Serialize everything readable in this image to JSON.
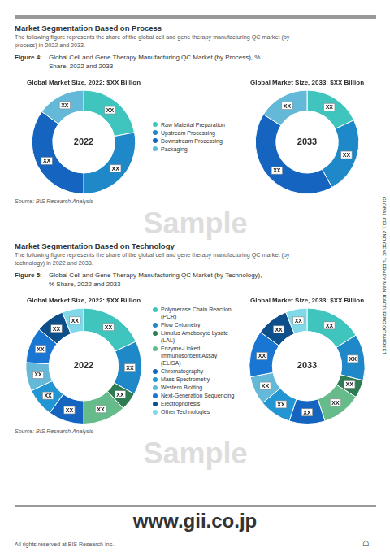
{
  "chart_data": [
    {
      "type": "doughnut",
      "title": "Global Market Size, 2022: $XX Billion",
      "categories": [
        "Raw Material Preparation",
        "Upstream Processing",
        "Downstream Processing",
        "Packaging"
      ],
      "values": [
        22,
        28,
        35,
        15
      ],
      "value_labels": [
        "XX",
        "XX",
        "XX",
        "XX"
      ],
      "data_labels": true,
      "colors": [
        "#40c4be",
        "#1e88c8",
        "#1565c0",
        "#64b8d8"
      ],
      "annotations": [
        "2022"
      ],
      "legend": "right"
    },
    {
      "type": "doughnut",
      "title": "Global Market Size, 2033: $XX Billion",
      "categories": [
        "Raw Material Preparation",
        "Upstream Processing",
        "Downstream Processing",
        "Packaging"
      ],
      "values": [
        18,
        24,
        42,
        16
      ],
      "value_labels": [
        "XX",
        "XX",
        "XX",
        "XX"
      ],
      "data_labels": true,
      "colors": [
        "#40c4be",
        "#1e88c8",
        "#1565c0",
        "#64b8d8"
      ],
      "annotations": [
        "2033"
      ]
    },
    {
      "type": "doughnut",
      "title": "Global Market Size, 2022: $XX Billion",
      "categories": [
        "Polymerase Chain Reaction (PCR)",
        "Flow Cytometry",
        "Limulus Amebocyte Lysate (LAL)",
        "Enzyme-Linked Immunosorbent Assay (ELISA)",
        "Chromatography",
        "Mass Spectrometry",
        "Western Blotting",
        "Next-Generation Sequencing",
        "Electrophoresis",
        "Other Technologies"
      ],
      "values": [
        18,
        15,
        5,
        12,
        10,
        8,
        8,
        10,
        8,
        6
      ],
      "value_labels": [
        "XX",
        "XX",
        "XX",
        "XX",
        "XX",
        "XX",
        "XX",
        "XX",
        "XX",
        "XX"
      ],
      "data_labels": true,
      "colors": [
        "#40c4be",
        "#1e88c8",
        "#2e7d52",
        "#66bb8a",
        "#1565c0",
        "#2196d3",
        "#64b8d8",
        "#1976d2",
        "#0d4f8a",
        "#80d8e8"
      ],
      "annotations": [
        "2022"
      ],
      "legend": "right"
    },
    {
      "type": "doughnut",
      "title": "Global Market Size, 2033: $XX Billion",
      "categories": [
        "Polymerase Chain Reaction (PCR)",
        "Flow Cytometry",
        "Limulus Amebocyte Lysate (LAL)",
        "Enzyme-Linked Immunosorbent Assay (ELISA)",
        "Chromatography",
        "Mass Spectrometry",
        "Western Blotting",
        "Next-Generation Sequencing",
        "Electrophoresis",
        "Other Technologies"
      ],
      "values": [
        16,
        13,
        5,
        11,
        10,
        9,
        8,
        13,
        9,
        6
      ],
      "value_labels": [
        "XX",
        "XX",
        "XX",
        "XX",
        "XX",
        "XX",
        "XX",
        "XX",
        "XX",
        "XX"
      ],
      "data_labels": true,
      "colors": [
        "#40c4be",
        "#1e88c8",
        "#2e7d52",
        "#66bb8a",
        "#1565c0",
        "#2196d3",
        "#64b8d8",
        "#1976d2",
        "#0d4f8a",
        "#80d8e8"
      ],
      "annotations": [
        "2033"
      ]
    }
  ],
  "annotations": [
    "Market Segmentation Based on Process",
    "The following figure represents the share of the global cell and gene therapy manufacturing QC market (by",
    "process) in 2022 and 2033.",
    "Figure 4:",
    "Global Cell and Gene Therapy Manufacturing QC Market (by Process), %",
    "Share, 2022 and 2033",
    "Source: BIS Research Analysis",
    "Sample",
    "Market Segmentation Based on Technology",
    "The following figure represents the share of the global cell and gene therapy manufacturing QC market (by",
    "technology) in 2022 and 2033.",
    "Figure 5:",
    "Global Cell and Gene Therapy Manufacturing QC Market (by Technology),",
    "% Share, 2022 and 2033",
    "Source: BIS Research Analysis",
    "Sample",
    "GLOBAL CELL AND GENE THERAPY MANUFACTURING QC MARKET",
    "www.gii.co.jp",
    "All rights reserved at BIS Research Inc.",
    "⌂"
  ]
}
